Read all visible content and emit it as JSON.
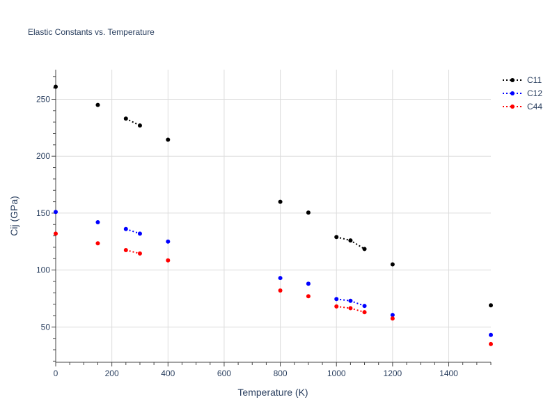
{
  "chart_data": {
    "type": "scatter",
    "title": "Elastic Constants vs. Temperature",
    "xlabel": "Temperature (K)",
    "ylabel": "Cij (GPa)",
    "xlim": [
      0,
      1550
    ],
    "ylim": [
      19,
      276
    ],
    "x_ticks": [
      0,
      200,
      400,
      600,
      800,
      1000,
      1200,
      1400
    ],
    "y_ticks": [
      50,
      100,
      150,
      200,
      250
    ],
    "grid": true,
    "legend_position": "top-right",
    "line_style": "dotted",
    "series": [
      {
        "name": "C11",
        "color": "#000000",
        "points": [
          {
            "x": 0,
            "y": 261
          },
          {
            "x": 150,
            "y": 245
          },
          {
            "x": 250,
            "y": 233
          },
          {
            "x": 300,
            "y": 227
          },
          {
            "x": 400,
            "y": 214.5
          },
          {
            "x": 800,
            "y": 160
          },
          {
            "x": 900,
            "y": 150.5
          },
          {
            "x": 1000,
            "y": 129
          },
          {
            "x": 1050,
            "y": 126
          },
          {
            "x": 1100,
            "y": 118.5
          },
          {
            "x": 1200,
            "y": 105
          },
          {
            "x": 1550,
            "y": 69
          }
        ],
        "connected_segments": [
          [
            250,
            300
          ],
          [
            1000,
            1050,
            1100
          ]
        ]
      },
      {
        "name": "C12",
        "color": "#0000ff",
        "points": [
          {
            "x": 0,
            "y": 151
          },
          {
            "x": 150,
            "y": 142
          },
          {
            "x": 250,
            "y": 136
          },
          {
            "x": 300,
            "y": 132
          },
          {
            "x": 400,
            "y": 125
          },
          {
            "x": 800,
            "y": 93
          },
          {
            "x": 900,
            "y": 88
          },
          {
            "x": 1000,
            "y": 74.5
          },
          {
            "x": 1050,
            "y": 73
          },
          {
            "x": 1100,
            "y": 68.5
          },
          {
            "x": 1200,
            "y": 60.5
          },
          {
            "x": 1550,
            "y": 43
          }
        ],
        "connected_segments": [
          [
            250,
            300
          ],
          [
            1000,
            1050,
            1100
          ]
        ]
      },
      {
        "name": "C44",
        "color": "#ff0000",
        "points": [
          {
            "x": 0,
            "y": 132
          },
          {
            "x": 150,
            "y": 123.5
          },
          {
            "x": 250,
            "y": 117.5
          },
          {
            "x": 300,
            "y": 114.5
          },
          {
            "x": 400,
            "y": 108.5
          },
          {
            "x": 800,
            "y": 82
          },
          {
            "x": 900,
            "y": 77
          },
          {
            "x": 1000,
            "y": 68
          },
          {
            "x": 1050,
            "y": 66.5
          },
          {
            "x": 1100,
            "y": 63
          },
          {
            "x": 1200,
            "y": 57.5
          },
          {
            "x": 1550,
            "y": 35
          }
        ],
        "connected_segments": [
          [
            250,
            300
          ],
          [
            1000,
            1050,
            1100
          ]
        ]
      }
    ]
  }
}
